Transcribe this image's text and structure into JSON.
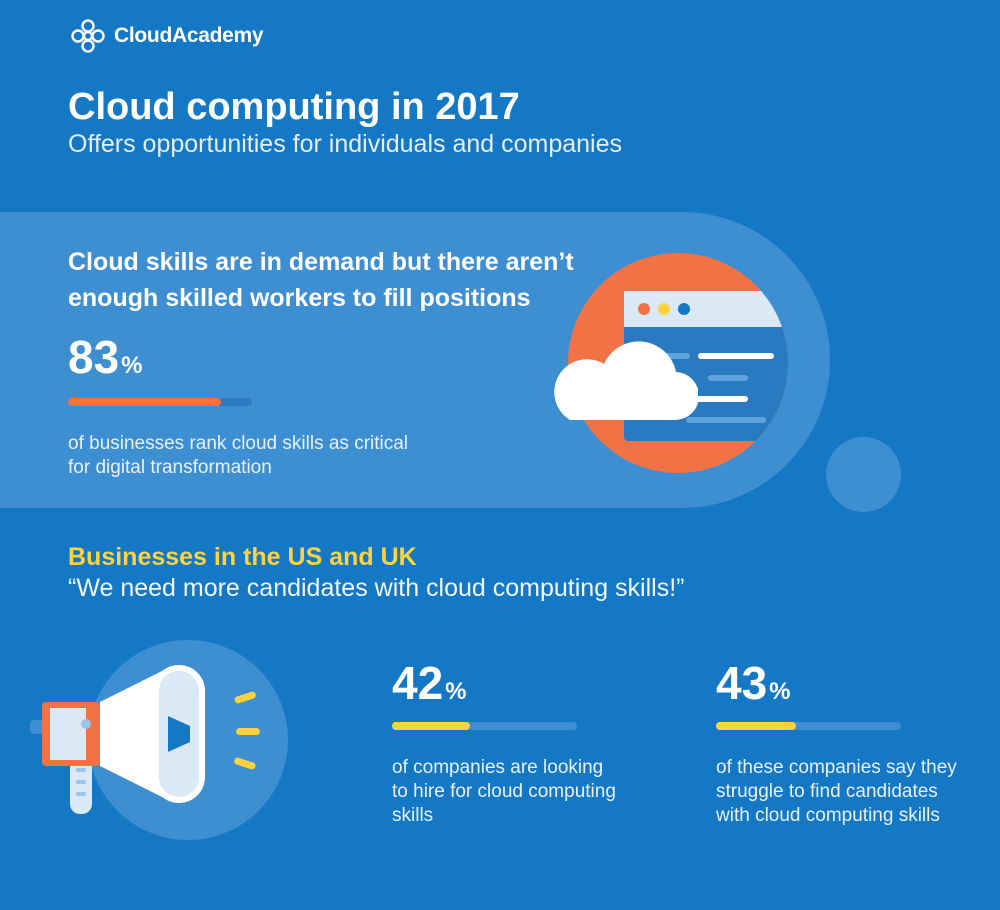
{
  "brand": {
    "name": "CloudAcademy"
  },
  "header": {
    "title": "Cloud computing in 2017",
    "subtitle": "Offers opportunities for individuals and companies"
  },
  "demand": {
    "heading": "Cloud skills are in demand but there aren’t enough skilled workers to fill positions",
    "stat": {
      "value": "83",
      "unit": "%",
      "fraction": 0.83,
      "description": "of businesses rank cloud skills as critical for digital transformation"
    }
  },
  "businesses": {
    "heading": "Businesses in the US and UK",
    "quote": "“We need more candidates with cloud computing skills!”",
    "stats": [
      {
        "value": "42",
        "unit": "%",
        "fraction": 0.42,
        "description": "of companies are looking to hire for cloud computing skills"
      },
      {
        "value": "43",
        "unit": "%",
        "fraction": 0.43,
        "description": "of these companies say they struggle to find candidates with cloud computing skills"
      }
    ]
  },
  "colors": {
    "background": "#1478c4",
    "band": "#3d8fd2",
    "accent_orange": "#f07245",
    "accent_yellow": "#ffd23f",
    "track": "#2e7bc4"
  },
  "icons": [
    "cloudacademy-logo-icon",
    "browser-window-icon",
    "cloud-icon",
    "megaphone-icon"
  ]
}
